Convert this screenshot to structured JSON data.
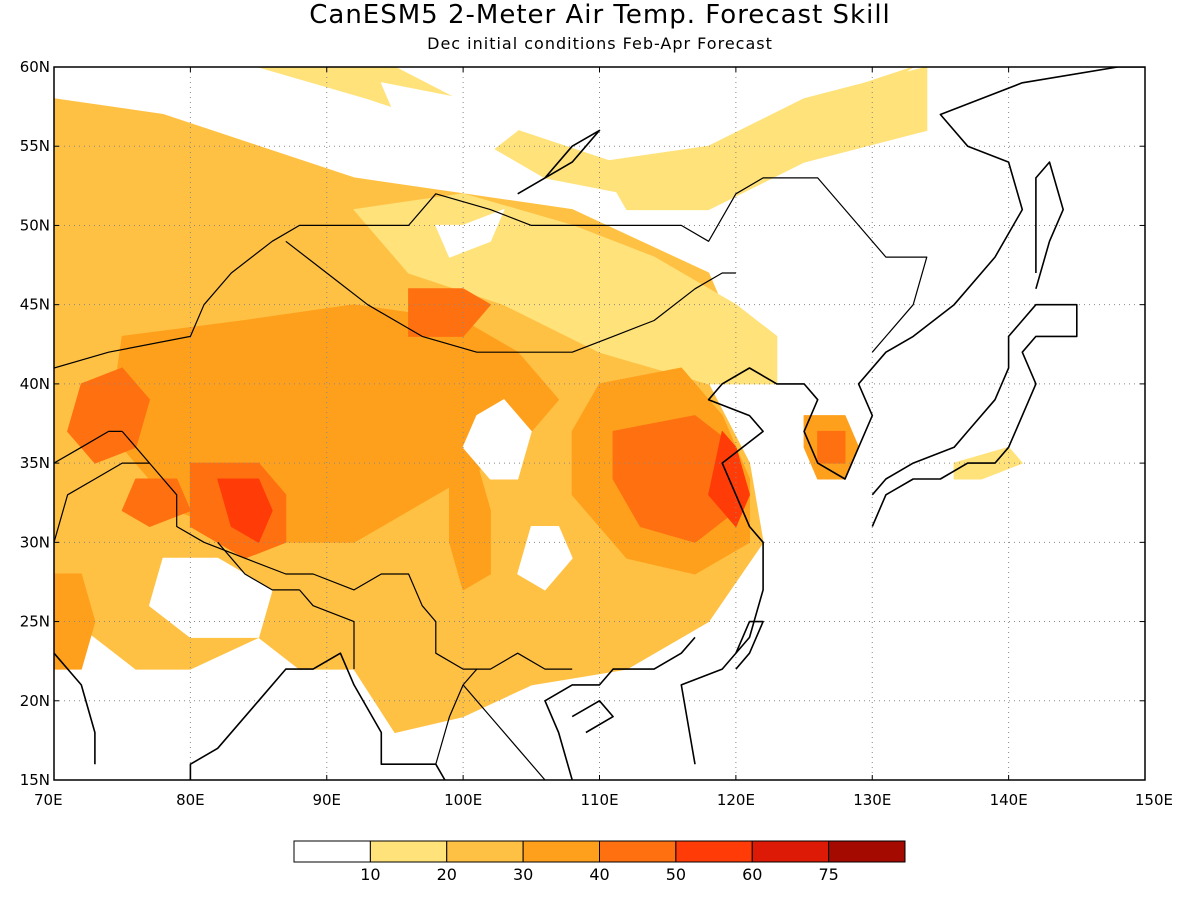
{
  "title": "CanESM5 2-Meter Air Temp. Forecast Skill",
  "subtitle": "Dec initial conditions  Feb-Apr Forecast",
  "chart_data": {
    "type": "heatmap",
    "title": "CanESM5 2-Meter Air Temp. Forecast Skill",
    "subtitle": "Dec initial conditions  Feb-Apr Forecast",
    "xlim": [
      70,
      150
    ],
    "ylim": [
      15,
      60
    ],
    "x_tick_labels": [
      "70E",
      "80E",
      "90E",
      "100E",
      "110E",
      "120E",
      "130E",
      "140E",
      "150E"
    ],
    "x_ticks": [
      70,
      80,
      90,
      100,
      110,
      120,
      130,
      140,
      150
    ],
    "y_tick_labels": [
      "15N",
      "20N",
      "25N",
      "30N",
      "35N",
      "40N",
      "45N",
      "50N",
      "55N",
      "60N"
    ],
    "y_ticks": [
      15,
      20,
      25,
      30,
      35,
      40,
      45,
      50,
      55,
      60
    ],
    "grid": true,
    "colorbar": {
      "levels": [
        10,
        20,
        30,
        40,
        50,
        60,
        75
      ],
      "labels": [
        "10",
        "20",
        "30",
        "40",
        "50",
        "60",
        "75"
      ],
      "colors": [
        "#ffffff",
        "#ffe27a",
        "#ffc143",
        "#ffa01c",
        "#ff7010",
        "#ff3c08",
        "#dd1a05",
        "#a50a00"
      ]
    },
    "regions": [
      {
        "name": "central-asia",
        "level": 2,
        "points": [
          [
            70,
            58
          ],
          [
            78,
            57
          ],
          [
            85,
            55
          ],
          [
            92,
            53
          ],
          [
            100,
            52
          ],
          [
            108,
            51
          ],
          [
            113,
            49
          ],
          [
            118,
            47
          ],
          [
            120,
            43
          ],
          [
            118,
            40
          ],
          [
            121,
            35
          ],
          [
            122,
            30
          ],
          [
            118,
            25
          ],
          [
            112,
            22
          ],
          [
            105,
            21
          ],
          [
            100,
            19
          ],
          [
            95,
            18
          ],
          [
            92,
            22
          ],
          [
            88,
            22
          ],
          [
            85,
            24
          ],
          [
            80,
            22
          ],
          [
            76,
            22
          ],
          [
            73,
            24
          ],
          [
            70,
            26
          ]
        ]
      },
      {
        "name": "north-band",
        "level": 1,
        "points": [
          [
            70,
            60
          ],
          [
            85,
            60
          ],
          [
            93,
            58
          ],
          [
            100,
            56
          ],
          [
            106,
            53
          ],
          [
            112,
            52
          ],
          [
            118,
            53
          ],
          [
            126,
            56
          ],
          [
            133,
            60
          ],
          [
            126,
            58
          ],
          [
            118,
            54
          ],
          [
            111,
            54
          ],
          [
            104,
            56
          ],
          [
            95,
            60
          ]
        ]
      },
      {
        "name": "east-siberia-band",
        "level": 1,
        "points": [
          [
            110,
            54
          ],
          [
            118,
            55
          ],
          [
            125,
            58
          ],
          [
            134,
            60
          ],
          [
            134,
            56
          ],
          [
            125,
            54
          ],
          [
            118,
            51
          ],
          [
            112,
            51
          ]
        ]
      },
      {
        "name": "mongolia",
        "level": 1,
        "points": [
          [
            92,
            51
          ],
          [
            100,
            52
          ],
          [
            108,
            50
          ],
          [
            114,
            48
          ],
          [
            120,
            45
          ],
          [
            123,
            43
          ],
          [
            123,
            40
          ],
          [
            118,
            40
          ],
          [
            110,
            42
          ],
          [
            103,
            45
          ],
          [
            96,
            47
          ]
        ]
      },
      {
        "name": "central-level3",
        "level": 3,
        "points": [
          [
            75,
            43
          ],
          [
            84,
            44
          ],
          [
            92,
            45
          ],
          [
            100,
            44
          ],
          [
            104,
            42
          ],
          [
            107,
            39
          ],
          [
            104,
            36
          ],
          [
            98,
            33
          ],
          [
            92,
            30
          ],
          [
            85,
            30
          ],
          [
            79,
            32
          ],
          [
            74,
            37
          ]
        ]
      },
      {
        "name": "dzungaria",
        "level": 4,
        "points": [
          [
            96,
            46
          ],
          [
            100,
            46
          ],
          [
            102,
            45
          ],
          [
            100,
            43
          ],
          [
            96,
            43
          ]
        ]
      },
      {
        "name": "pamir",
        "level": 4,
        "points": [
          [
            72,
            40
          ],
          [
            75,
            41
          ],
          [
            77,
            39
          ],
          [
            76,
            36
          ],
          [
            73,
            35
          ],
          [
            71,
            37
          ]
        ]
      },
      {
        "name": "tibet-west",
        "level": 4,
        "points": [
          [
            80,
            35
          ],
          [
            85,
            35
          ],
          [
            87,
            33
          ],
          [
            87,
            30
          ],
          [
            84,
            29
          ],
          [
            80,
            31
          ]
        ]
      },
      {
        "name": "tibet-core",
        "level": 5,
        "points": [
          [
            82,
            34
          ],
          [
            85,
            34
          ],
          [
            86,
            32
          ],
          [
            85,
            30
          ],
          [
            83,
            31
          ]
        ]
      },
      {
        "name": "karakoram",
        "level": 4,
        "points": [
          [
            76,
            34
          ],
          [
            79,
            34
          ],
          [
            80,
            32
          ],
          [
            77,
            31
          ],
          [
            75,
            32
          ]
        ]
      },
      {
        "name": "east-china-level3",
        "level": 3,
        "points": [
          [
            110,
            40
          ],
          [
            116,
            41
          ],
          [
            119,
            38
          ],
          [
            121,
            34
          ],
          [
            121,
            30
          ],
          [
            117,
            28
          ],
          [
            112,
            29
          ],
          [
            108,
            33
          ],
          [
            108,
            37
          ]
        ]
      },
      {
        "name": "east-china",
        "level": 4,
        "points": [
          [
            111,
            37
          ],
          [
            117,
            38
          ],
          [
            120,
            36
          ],
          [
            120,
            32
          ],
          [
            117,
            30
          ],
          [
            113,
            31
          ],
          [
            111,
            34
          ]
        ]
      },
      {
        "name": "shandong",
        "level": 5,
        "points": [
          [
            119,
            37
          ],
          [
            120,
            36
          ],
          [
            121,
            33
          ],
          [
            120,
            31
          ],
          [
            118,
            33
          ]
        ]
      },
      {
        "name": "korea",
        "level": 3,
        "points": [
          [
            125,
            38
          ],
          [
            128,
            38
          ],
          [
            129,
            36
          ],
          [
            128,
            34
          ],
          [
            126,
            34
          ],
          [
            125,
            36
          ]
        ]
      },
      {
        "name": "korea-south",
        "level": 4,
        "points": [
          [
            126,
            37
          ],
          [
            128,
            37
          ],
          [
            128,
            35
          ],
          [
            126,
            35
          ]
        ]
      },
      {
        "name": "japan-spot",
        "level": 1,
        "points": [
          [
            136,
            35
          ],
          [
            140,
            36
          ],
          [
            141,
            35
          ],
          [
            138,
            34
          ],
          [
            136,
            34
          ]
        ]
      },
      {
        "name": "sichuan-streak",
        "level": 3,
        "points": [
          [
            99,
            36
          ],
          [
            101,
            35
          ],
          [
            102,
            32
          ],
          [
            102,
            28
          ],
          [
            100,
            27
          ],
          [
            99,
            30
          ]
        ]
      },
      {
        "name": "india-west",
        "level": 3,
        "points": [
          [
            70,
            28
          ],
          [
            72,
            28
          ],
          [
            73,
            25
          ],
          [
            72,
            22
          ],
          [
            70,
            22
          ]
        ]
      },
      {
        "name": "white-mongolia",
        "level": 0,
        "points": [
          [
            98,
            50
          ],
          [
            100,
            50
          ],
          [
            103,
            51
          ],
          [
            102,
            49
          ],
          [
            99,
            48
          ]
        ]
      },
      {
        "name": "white-china-1",
        "level": 0,
        "points": [
          [
            101,
            38
          ],
          [
            103,
            39
          ],
          [
            105,
            37
          ],
          [
            104,
            34
          ],
          [
            102,
            34
          ],
          [
            100,
            36
          ]
        ]
      },
      {
        "name": "white-china-2",
        "level": 0,
        "points": [
          [
            105,
            31
          ],
          [
            107,
            31
          ],
          [
            108,
            29
          ],
          [
            106,
            27
          ],
          [
            104,
            28
          ]
        ]
      },
      {
        "name": "white-india",
        "level": 0,
        "points": [
          [
            78,
            29
          ],
          [
            82,
            29
          ],
          [
            86,
            27
          ],
          [
            85,
            24
          ],
          [
            80,
            24
          ],
          [
            77,
            26
          ]
        ]
      },
      {
        "name": "white-north",
        "level": 0,
        "points": [
          [
            94,
            59
          ],
          [
            100,
            58
          ],
          [
            104,
            56
          ],
          [
            101,
            54
          ],
          [
            96,
            55
          ]
        ]
      }
    ]
  }
}
